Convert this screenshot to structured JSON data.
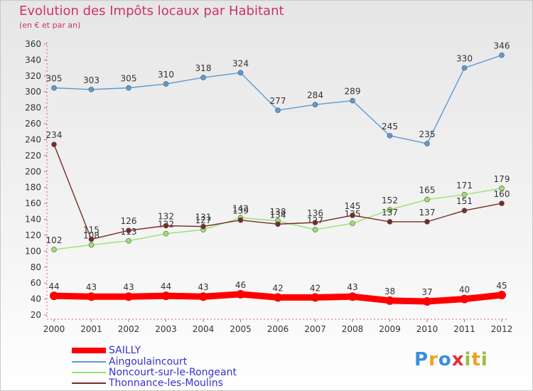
{
  "chart_data": {
    "type": "line",
    "title": "Evolution des Impôts locaux par Habitant",
    "subtitle": "(en € et par an)",
    "categories": [
      "2000",
      "2001",
      "2002",
      "2003",
      "2004",
      "2005",
      "2006",
      "2007",
      "2008",
      "2009",
      "2010",
      "2011",
      "2012"
    ],
    "yticks": [
      "20",
      "40",
      "60",
      "80",
      "100",
      "120",
      "140",
      "160",
      "180",
      "200",
      "220",
      "240",
      "260",
      "280",
      "300",
      "320",
      "340",
      "360"
    ],
    "ylim": [
      20,
      360
    ],
    "grid": false,
    "legend_position": "bottom-left",
    "series": [
      {
        "name": "SAILLY",
        "color": "#ff0000",
        "values": [
          44,
          43,
          43,
          44,
          43,
          46,
          42,
          42,
          43,
          38,
          37,
          40,
          45
        ]
      },
      {
        "name": "Aingoulaincourt",
        "color": "#5b9bd5",
        "values": [
          305,
          303,
          305,
          310,
          318,
          324,
          277,
          284,
          289,
          245,
          235,
          330,
          346
        ]
      },
      {
        "name": "Noncourt-sur-le-Rongeant",
        "color": "#99e36b",
        "values": [
          102,
          108,
          113,
          122,
          127,
          142,
          138,
          127,
          135,
          152,
          165,
          171,
          179
        ]
      },
      {
        "name": "Thonnance-les-Moulins",
        "color": "#7a2a2a",
        "values": [
          234,
          115,
          126,
          132,
          131,
          139,
          134,
          136,
          145,
          137,
          137,
          151,
          160
        ]
      }
    ]
  },
  "logo": {
    "letters": [
      "P",
      "r",
      "o",
      "x",
      "i",
      "t",
      "i"
    ],
    "colors": [
      "#3a8fd8",
      "#f0a020",
      "#3a8fd8",
      "#e03030",
      "#90c040",
      "#f0a020",
      "#90c040"
    ]
  }
}
